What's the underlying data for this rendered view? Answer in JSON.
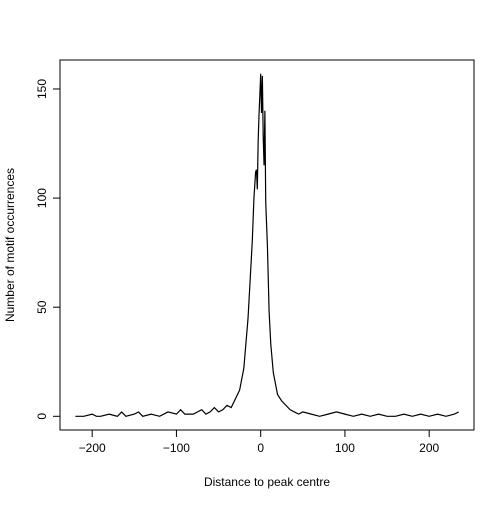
{
  "chart_data": {
    "type": "line",
    "xlabel": "Distance to peak centre",
    "ylabel": "Number of motif occurrences",
    "x": [
      -220,
      -210,
      -200,
      -195,
      -190,
      -180,
      -170,
      -165,
      -160,
      -150,
      -145,
      -140,
      -130,
      -120,
      -110,
      -100,
      -95,
      -90,
      -80,
      -70,
      -65,
      -60,
      -55,
      -50,
      -45,
      -40,
      -35,
      -30,
      -25,
      -20,
      -15,
      -10,
      -8,
      -6,
      -5,
      -4,
      -3,
      -2,
      -1,
      0,
      1,
      2,
      3,
      4,
      5,
      6,
      8,
      10,
      12,
      15,
      20,
      25,
      30,
      35,
      40,
      45,
      50,
      60,
      70,
      80,
      90,
      100,
      110,
      120,
      130,
      140,
      150,
      160,
      170,
      180,
      190,
      200,
      210,
      220,
      230,
      235
    ],
    "series": [
      {
        "color": "#000000",
        "values": [
          0,
          0,
          1,
          0,
          0,
          1,
          0,
          2,
          0,
          1,
          2,
          0,
          1,
          0,
          2,
          1,
          3,
          1,
          1,
          3,
          1,
          2,
          4,
          2,
          3,
          5,
          4,
          8,
          12,
          22,
          45,
          80,
          100,
          112,
          113,
          104,
          126,
          138,
          147,
          157,
          139,
          156,
          128,
          115,
          140,
          98,
          78,
          48,
          33,
          20,
          10,
          7,
          5,
          3,
          2,
          1,
          2,
          1,
          0,
          1,
          2,
          1,
          0,
          1,
          0,
          1,
          0,
          0,
          1,
          0,
          1,
          0,
          1,
          0,
          1,
          2
        ]
      }
    ],
    "xlim": [
      -238.2,
      253.2
    ],
    "ylim": [
      -6.28,
      163.28
    ],
    "xticks": [
      {
        "value": -200,
        "label": "−200"
      },
      {
        "value": -100,
        "label": "−100"
      },
      0,
      100,
      200
    ],
    "yticks": [
      0,
      50,
      100,
      150
    ]
  }
}
